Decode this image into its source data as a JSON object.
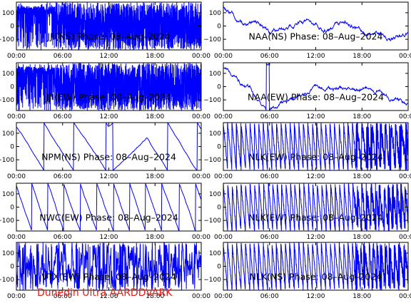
{
  "footer": "Dunedin Ultra AARDDVARK",
  "colors": {
    "trace": "#0000ff",
    "axes": "#000000",
    "footer": "#e0201a"
  },
  "chart_data": [
    {
      "id": "p0",
      "type": "line",
      "title": "JJI(NS) Phase: 08–Aug–2024",
      "xlim": [
        0,
        24
      ],
      "ylim": [
        -180,
        180
      ],
      "xticks": [
        "00:00",
        "06:00",
        "12:00",
        "18:00",
        "00:00"
      ],
      "yticks": [
        "100",
        "0",
        "−100"
      ],
      "style": "dense-noise",
      "series": []
    },
    {
      "id": "p1",
      "type": "line",
      "title": "NAA(NS) Phase: 08–Aug–2024",
      "xlim": [
        0,
        24
      ],
      "ylim": [
        -180,
        180
      ],
      "xticks": [
        "00:00",
        "06:00",
        "12:00",
        "18:00",
        "00:00"
      ],
      "yticks": [
        "100",
        "0",
        "−100"
      ],
      "style": "drift-wraps",
      "series": []
    },
    {
      "id": "p2",
      "type": "line",
      "title": "JJI(EW) Phase: 08–Aug–2024",
      "xlim": [
        0,
        24
      ],
      "ylim": [
        -180,
        180
      ],
      "xticks": [
        "00:00",
        "06:00",
        "12:00",
        "18:00",
        "00:00"
      ],
      "yticks": [
        "100",
        "0",
        "−100"
      ],
      "style": "dense-noise",
      "series": []
    },
    {
      "id": "p3",
      "type": "line",
      "title": "NAA(EW) Phase: 08–Aug–2024",
      "xlim": [
        0,
        24
      ],
      "ylim": [
        -180,
        180
      ],
      "xticks": [
        "00:00",
        "06:00",
        "12:00",
        "18:00",
        "00:00"
      ],
      "yticks": [
        "100",
        "0",
        "−100"
      ],
      "style": "drift-wraps",
      "series": []
    },
    {
      "id": "p4",
      "type": "line",
      "title": "NPM(NS) Phase: 08–Aug–2024",
      "xlim": [
        0,
        24
      ],
      "ylim": [
        -180,
        180
      ],
      "xticks": [
        "00:00",
        "06:00",
        "12:00",
        "18:00",
        "00:00"
      ],
      "yticks": [
        "100",
        "0",
        "−100"
      ],
      "style": "slow-sawtooth",
      "series": []
    },
    {
      "id": "p5",
      "type": "line",
      "title": "NLK(EW) Phase: 08–Aug–2024",
      "xlim": [
        0,
        24
      ],
      "ylim": [
        -180,
        180
      ],
      "xticks": [
        "00:00",
        "06:00",
        "12:00",
        "18:00",
        "00:00"
      ],
      "yticks": [
        "100",
        "0",
        "−100"
      ],
      "style": "fast-sawtooth",
      "series": []
    },
    {
      "id": "p6",
      "type": "line",
      "title": "NWC(EW) Phase: 08–Aug–2024",
      "xlim": [
        0,
        24
      ],
      "ylim": [
        -180,
        180
      ],
      "xticks": [
        "00:00",
        "06:00",
        "12:00",
        "18:00",
        "00:00"
      ],
      "yticks": [
        "100",
        "0",
        "−100"
      ],
      "style": "medium-sawtooth",
      "series": []
    },
    {
      "id": "p7",
      "type": "line",
      "title": "NLK(EW) Phase: 08–Aug–2024",
      "xlim": [
        0,
        24
      ],
      "ylim": [
        -180,
        180
      ],
      "xticks": [
        "00:00",
        "06:00",
        "12:00",
        "18:00",
        "00:00"
      ],
      "yticks": [
        "100",
        "0",
        "−100"
      ],
      "style": "fast-sawtooth",
      "series": []
    },
    {
      "id": "p8",
      "type": "line",
      "title": "VTX(EW) Phase: 08–Aug–2024",
      "xlim": [
        0,
        24
      ],
      "ylim": [
        -180,
        180
      ],
      "xticks": [
        "00:00",
        "06:00",
        "12:00",
        "18:00",
        "00:00"
      ],
      "yticks": [
        "100",
        "0",
        "−100"
      ],
      "style": "mixed-noise",
      "series": []
    },
    {
      "id": "p9",
      "type": "line",
      "title": "NLK(NS) Phase: 08–Aug–2024",
      "xlim": [
        0,
        24
      ],
      "ylim": [
        -180,
        180
      ],
      "xticks": [
        "00:00",
        "06:00",
        "12:00",
        "18:00",
        "00:00"
      ],
      "yticks": [
        "100",
        "0",
        "−100"
      ],
      "style": "fast-sawtooth",
      "series": []
    }
  ]
}
